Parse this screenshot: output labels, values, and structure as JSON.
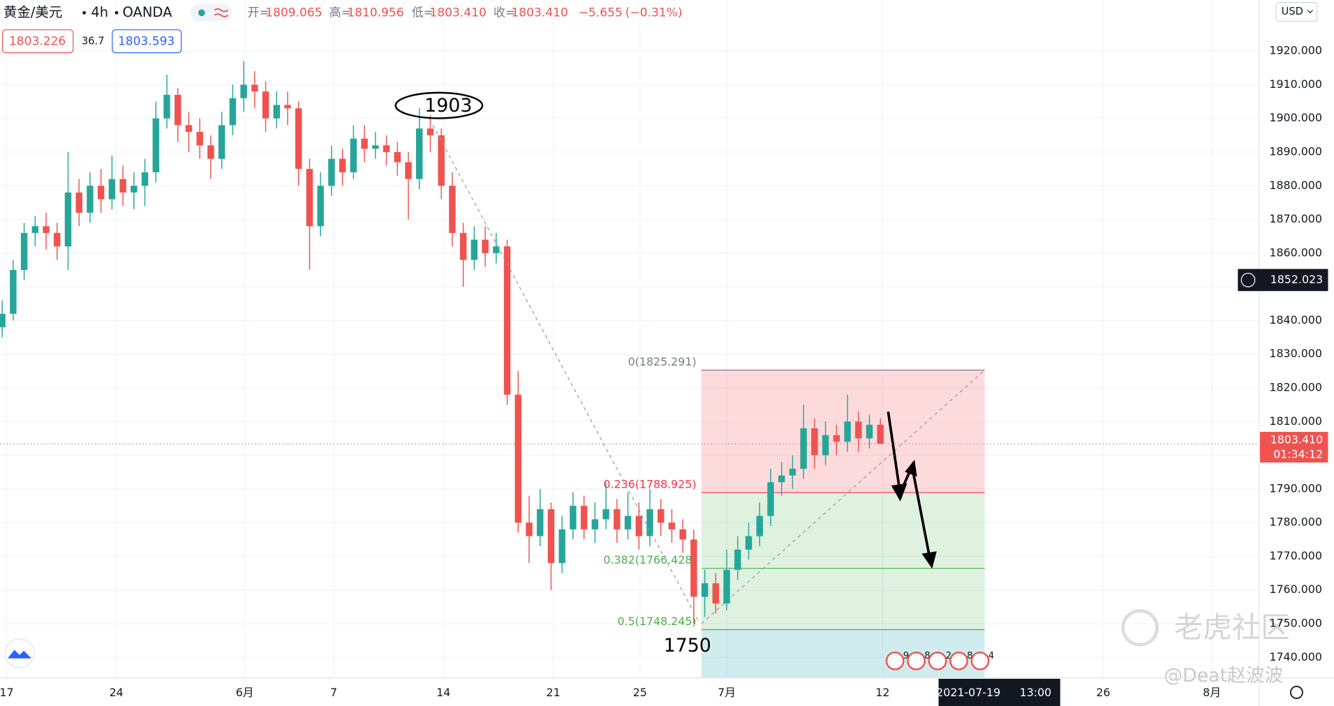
{
  "chart_data": {
    "type": "candlestick",
    "symbol": "黄金/美元",
    "interval": "4h",
    "exchange": "OANDA",
    "ohlc_header": [
      {
        "label": "开=",
        "value": "1809.065"
      },
      {
        "label": "高=",
        "value": "1810.956"
      },
      {
        "label": "低=",
        "value": "1803.410"
      },
      {
        "label": "收=",
        "value": "1803.410"
      }
    ],
    "change": "−5.655",
    "change_pct": "(−0.31%)",
    "bid": "1803.226",
    "spread": "36.7",
    "ask": "1803.593",
    "currency": "USD",
    "up_color": "#26a69a",
    "down_color": "#ef5350",
    "xlim": [
      -0.2,
      114.5
    ],
    "ylim": [
      1733.9,
      1935.15
    ],
    "xticks": [
      {
        "value": 0.4,
        "label": "17"
      },
      {
        "value": 10.4,
        "label": "24"
      },
      {
        "value": 22.1,
        "label": "6月"
      },
      {
        "value": 30.2,
        "label": "7"
      },
      {
        "value": 40.2,
        "label": "14"
      },
      {
        "value": 50.2,
        "label": "21"
      },
      {
        "value": 58.1,
        "label": "25"
      },
      {
        "value": 66,
        "label": "7月"
      },
      {
        "value": 80.2,
        "label": "12"
      },
      {
        "value": 100.3,
        "label": "26"
      },
      {
        "value": 110.2,
        "label": "8月"
      }
    ],
    "crosshair_x": {
      "value": 90.8,
      "date": "2021-07-19",
      "time": "13:00"
    },
    "yticks": [
      {
        "value": 1740,
        "label": "1740.000"
      },
      {
        "value": 1750,
        "label": "1750.000"
      },
      {
        "value": 1760,
        "label": "1760.000"
      },
      {
        "value": 1770,
        "label": "1770.000"
      },
      {
        "value": 1780,
        "label": "1780.000"
      },
      {
        "value": 1790,
        "label": "1790.000"
      },
      {
        "value": 1800,
        "label": "1800.000"
      },
      {
        "value": 1810,
        "label": "1810.000"
      },
      {
        "value": 1820,
        "label": "1820.000"
      },
      {
        "value": 1830,
        "label": "1830.000"
      },
      {
        "value": 1840,
        "label": "1840.000"
      },
      {
        "value": 1850,
        "label": "1850.000"
      },
      {
        "value": 1860,
        "label": "1860.000"
      },
      {
        "value": 1870,
        "label": "1870.000"
      },
      {
        "value": 1880,
        "label": "1880.000"
      },
      {
        "value": 1890,
        "label": "1890.000"
      },
      {
        "value": 1900,
        "label": "1900.000"
      },
      {
        "value": 1910,
        "label": "1910.000"
      },
      {
        "value": 1920,
        "label": "1920.000"
      }
    ],
    "crosshair_y": {
      "value": 1852.023,
      "label": "1852.023"
    },
    "last_price": {
      "value": 1803.41,
      "label": "1803.410",
      "countdown": "01:34:12"
    },
    "x": [
      0,
      1,
      2,
      3,
      4,
      5,
      6,
      7,
      8,
      9,
      10,
      11,
      12,
      13,
      14,
      15,
      16,
      17,
      18,
      19,
      20,
      21,
      22,
      23,
      24,
      25,
      26,
      27,
      28,
      29,
      30,
      31,
      32,
      33,
      34,
      35,
      36,
      37,
      38,
      39,
      40,
      41,
      42,
      43,
      44,
      45,
      46,
      47,
      48,
      49,
      50,
      51,
      52,
      53,
      54,
      55,
      56,
      57,
      58,
      59,
      60,
      61,
      62,
      63,
      64,
      65,
      66,
      67,
      68,
      69,
      70,
      71,
      72,
      73,
      74,
      75,
      76,
      77,
      78,
      79,
      80
    ],
    "candles": [
      [
        1838,
        1846,
        1835,
        1842
      ],
      [
        1842,
        1858,
        1840,
        1855
      ],
      [
        1855,
        1869,
        1852,
        1866
      ],
      [
        1866,
        1871,
        1862,
        1868
      ],
      [
        1868,
        1872,
        1861,
        1866
      ],
      [
        1866,
        1869,
        1858,
        1862
      ],
      [
        1862,
        1890,
        1855,
        1878
      ],
      [
        1878,
        1882,
        1868,
        1872
      ],
      [
        1872,
        1884,
        1869,
        1880
      ],
      [
        1880,
        1885,
        1872,
        1876
      ],
      [
        1876,
        1889,
        1873,
        1882
      ],
      [
        1882,
        1886,
        1874,
        1878
      ],
      [
        1878,
        1884,
        1873,
        1880
      ],
      [
        1880,
        1888,
        1874,
        1884
      ],
      [
        1884,
        1905,
        1881,
        1900
      ],
      [
        1900,
        1913,
        1897,
        1907
      ],
      [
        1907,
        1909,
        1893,
        1898
      ],
      [
        1898,
        1902,
        1890,
        1896
      ],
      [
        1896,
        1900,
        1888,
        1892
      ],
      [
        1892,
        1895,
        1882,
        1888
      ],
      [
        1888,
        1902,
        1885,
        1898
      ],
      [
        1898,
        1910,
        1895,
        1906
      ],
      [
        1906,
        1917,
        1902,
        1910
      ],
      [
        1910,
        1914,
        1903,
        1908
      ],
      [
        1908,
        1911,
        1896,
        1900
      ],
      [
        1900,
        1908,
        1897,
        1904
      ],
      [
        1904,
        1908,
        1898,
        1903
      ],
      [
        1903,
        1905,
        1880,
        1885
      ],
      [
        1885,
        1888,
        1855,
        1868
      ],
      [
        1868,
        1884,
        1865,
        1880
      ],
      [
        1880,
        1892,
        1877,
        1888
      ],
      [
        1888,
        1891,
        1880,
        1884
      ],
      [
        1884,
        1898,
        1882,
        1894
      ],
      [
        1894,
        1898,
        1887,
        1891
      ],
      [
        1891,
        1896,
        1888,
        1892
      ],
      [
        1892,
        1895,
        1886,
        1890
      ],
      [
        1890,
        1893,
        1883,
        1887
      ],
      [
        1887,
        1890,
        1870,
        1882
      ],
      [
        1882,
        1903,
        1879,
        1897
      ],
      [
        1897,
        1901,
        1890,
        1895
      ],
      [
        1895,
        1897,
        1876,
        1880
      ],
      [
        1880,
        1884,
        1862,
        1866
      ],
      [
        1866,
        1869,
        1850,
        1858
      ],
      [
        1858,
        1868,
        1855,
        1864
      ],
      [
        1864,
        1868,
        1856,
        1860
      ],
      [
        1860,
        1866,
        1857,
        1862
      ],
      [
        1862,
        1864,
        1815,
        1818
      ],
      [
        1818,
        1825,
        1777,
        1780
      ],
      [
        1780,
        1788,
        1768,
        1776
      ],
      [
        1776,
        1790,
        1773,
        1784
      ],
      [
        1784,
        1786,
        1760,
        1768
      ],
      [
        1768,
        1782,
        1765,
        1778
      ],
      [
        1778,
        1789,
        1775,
        1785
      ],
      [
        1785,
        1788,
        1775,
        1778
      ],
      [
        1778,
        1786,
        1774,
        1781
      ],
      [
        1781,
        1792,
        1778,
        1784
      ],
      [
        1784,
        1787,
        1774,
        1778
      ],
      [
        1778,
        1789,
        1775,
        1782
      ],
      [
        1782,
        1786,
        1772,
        1776
      ],
      [
        1776,
        1790,
        1773,
        1784
      ],
      [
        1784,
        1787,
        1776,
        1780
      ],
      [
        1780,
        1784,
        1774,
        1778
      ],
      [
        1778,
        1781,
        1771,
        1775
      ],
      [
        1775,
        1778,
        1750,
        1758
      ],
      [
        1758,
        1766,
        1752,
        1762
      ],
      [
        1762,
        1765,
        1753,
        1756
      ],
      [
        1756,
        1772,
        1754,
        1766
      ],
      [
        1766,
        1776,
        1763,
        1772
      ],
      [
        1772,
        1780,
        1769,
        1776
      ],
      [
        1776,
        1786,
        1773,
        1782
      ],
      [
        1782,
        1796,
        1779,
        1792
      ],
      [
        1792,
        1798,
        1788,
        1794
      ],
      [
        1794,
        1800,
        1790,
        1796
      ],
      [
        1796,
        1815,
        1793,
        1808
      ],
      [
        1808,
        1811,
        1796,
        1800
      ],
      [
        1800,
        1810,
        1797,
        1806
      ],
      [
        1806,
        1809,
        1800,
        1804
      ],
      [
        1804,
        1818,
        1801,
        1810
      ],
      [
        1810,
        1813,
        1801,
        1805
      ],
      [
        1805,
        1812,
        1802,
        1809.065
      ],
      [
        1809.065,
        1810.956,
        1803.41,
        1803.41
      ]
    ],
    "fib": {
      "x_range": [
        63.7,
        89.5
      ],
      "levels": [
        {
          "label": "0(1825.291)",
          "price": 1825.291,
          "color": "#787b86"
        },
        {
          "label": "0.236(1788.925)",
          "price": 1788.925,
          "color": "#f23645"
        },
        {
          "label": "0.382(1766.428)",
          "price": 1766.428,
          "color": "#4caf50"
        },
        {
          "label": "0.5(1748.245)",
          "price": 1748.245,
          "color": "#4caf50"
        }
      ]
    },
    "annotations": [
      "1903",
      "1750"
    ],
    "events": [
      "9",
      "8",
      "2",
      "8",
      "4"
    ],
    "watermark": "老虎社区",
    "author": "@Deat赵波波"
  }
}
